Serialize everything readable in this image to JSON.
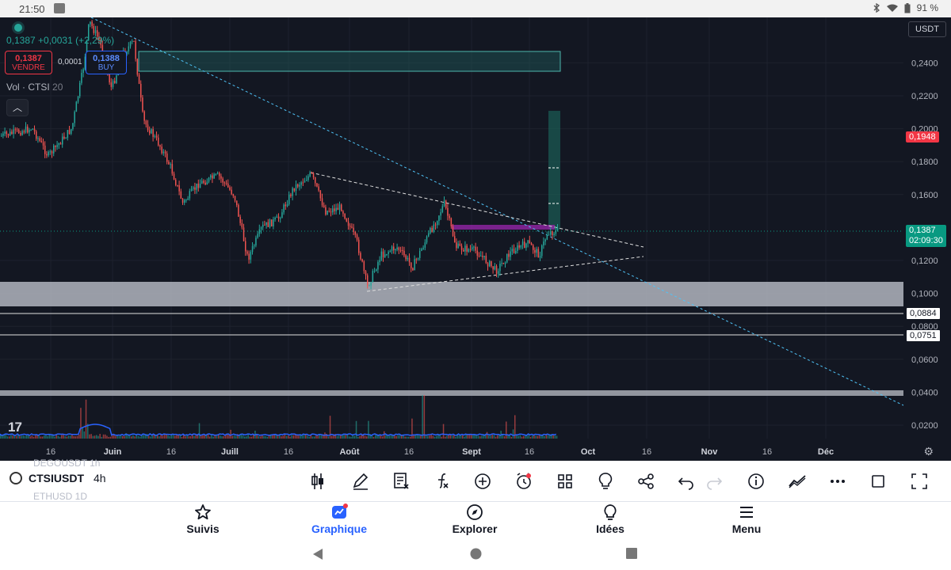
{
  "status_bar": {
    "time": "21:50",
    "battery": "91 %"
  },
  "chart": {
    "currency": "USDT",
    "ohlc_line": "0,1387 +0,0031 (+2,29%)",
    "sell": {
      "price": "0,1387",
      "label": "VENDRE"
    },
    "spread": "0,0001",
    "buy": {
      "price": "0,1388",
      "label": "BUY"
    },
    "volume_label": "Vol · CTSI",
    "volume_value": "20",
    "price_axis": [
      "0,2400",
      "0,2200",
      "0,2000",
      "0,1800",
      "0,1600",
      "0,1200",
      "0,1000",
      "0,0800",
      "0,0600",
      "0,0400",
      "0,0200"
    ],
    "time_axis": [
      "16",
      "Juin",
      "16",
      "Juill",
      "16",
      "Août",
      "16",
      "Sept",
      "16",
      "Oct",
      "16",
      "Nov",
      "16",
      "Déc"
    ],
    "tags": {
      "red": "0,1948",
      "green_price": "0,1387",
      "green_timer": "02:09:30",
      "level_1": "0,0884",
      "level_2": "0,0751"
    },
    "colors": {
      "up": "#26a69a",
      "down": "#ef5350",
      "background": "#131722"
    }
  },
  "toolbar": {
    "symbol": "CTSIUSDT",
    "timeframe": "4h",
    "ghost_above": "DEGOUSDT 1h",
    "ghost_below": "ETHUSD 1D",
    "tools": [
      "candle-type-icon",
      "draw-pen-icon",
      "indicators-icon",
      "function-icon",
      "add-icon",
      "alert-clock-icon",
      "layout-grid-icon",
      "ideas-bulb-icon",
      "share-icon",
      "undo-icon",
      "redo-icon",
      "info-icon",
      "compare-icon",
      "more-icon",
      "square-icon",
      "fullscreen-icon"
    ]
  },
  "bottom_nav": [
    {
      "label": "Suivis",
      "icon": "star-icon"
    },
    {
      "label": "Graphique",
      "icon": "chart-icon",
      "active": true
    },
    {
      "label": "Explorer",
      "icon": "compass-icon"
    },
    {
      "label": "Idées",
      "icon": "bulb-icon"
    },
    {
      "label": "Menu",
      "icon": "hamburger-icon"
    }
  ]
}
